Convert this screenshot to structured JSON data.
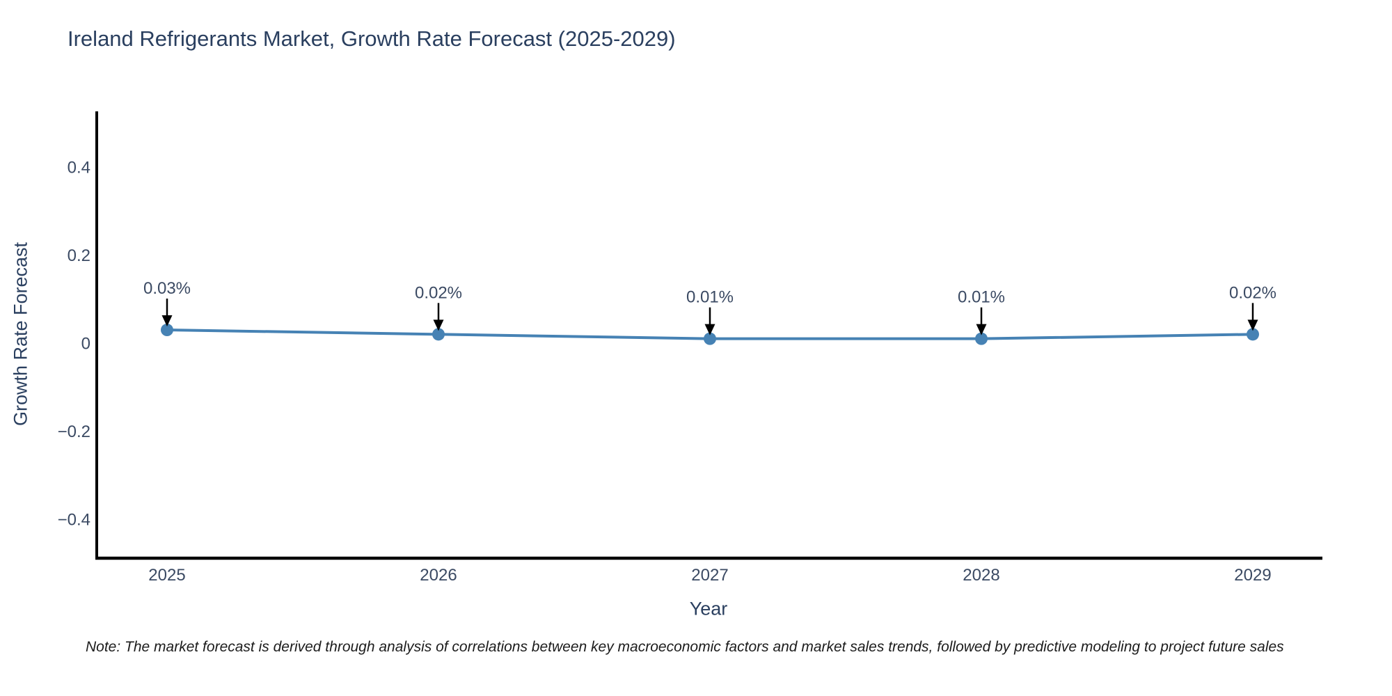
{
  "footnote": {
    "text": "Note: The market forecast is derived through analysis of correlations between key macroeconomic factors and market sales trends, followed by predictive modeling to project future sales"
  },
  "chart_data": {
    "type": "line",
    "title": "Ireland Refrigerants Market, Growth Rate Forecast (2025-2029)",
    "xlabel": "Year",
    "ylabel": "Growth Rate Forecast",
    "x": [
      2025,
      2026,
      2027,
      2028,
      2029
    ],
    "x_tick_labels": [
      "2025",
      "2026",
      "2027",
      "2028",
      "2029"
    ],
    "series": [
      {
        "name": "Growth Rate Forecast",
        "values": [
          0.03,
          0.02,
          0.01,
          0.01,
          0.02
        ]
      }
    ],
    "point_labels": [
      "0.03%",
      "0.02%",
      "0.01%",
      "0.01%",
      "0.02%"
    ],
    "y_ticks": [
      {
        "value": 0.4,
        "label": "0.4"
      },
      {
        "value": 0.2,
        "label": "0.2"
      },
      {
        "value": 0,
        "label": "0"
      },
      {
        "value": -0.2,
        "label": "−0.2"
      },
      {
        "value": -0.4,
        "label": "−0.4"
      }
    ],
    "ylim": [
      -0.5,
      0.535
    ],
    "grid": false,
    "legend_position": "none",
    "line_color": "#4682b4",
    "marker_color": "#4682b4",
    "axis_color": "#000000",
    "arrow_color": "#000000",
    "text_color": "#3b4a63"
  }
}
